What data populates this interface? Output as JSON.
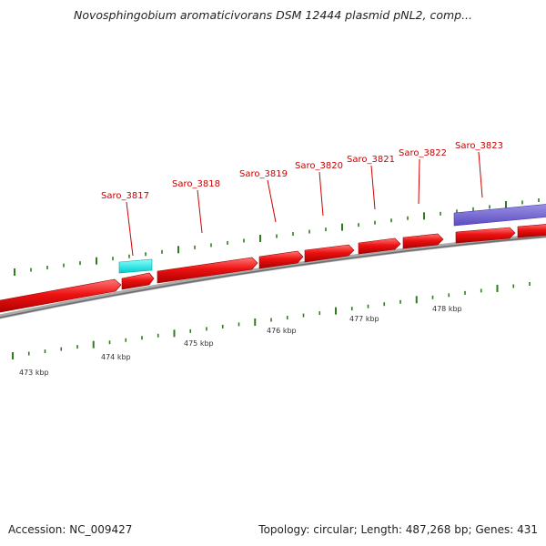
{
  "title": "Novosphingobium aromaticivorans DSM 12444 plasmid pNL2, comp...",
  "footer": {
    "accession": "Accession: NC_009427",
    "summary": "Topology: circular; Length: 487,268 bp; Genes: 431"
  },
  "colors": {
    "forward_gene": "#ee1111",
    "rna_feature": "#11e6e6",
    "region_feature": "#6e5fcc",
    "backbone": "#8a8a8a",
    "tick": "#2e7d1e",
    "gene_label": "#cc0000",
    "kbp_label": "#333333"
  },
  "gene_labels": [
    "Saro_3817",
    "Saro_3818",
    "Saro_3819",
    "Saro_3820",
    "Saro_3821",
    "Saro_3822",
    "Saro_3823"
  ],
  "kbp_labels": [
    "473 kbp",
    "474 kbp",
    "475 kbp",
    "476 kbp",
    "477 kbp",
    "478 kbp"
  ]
}
